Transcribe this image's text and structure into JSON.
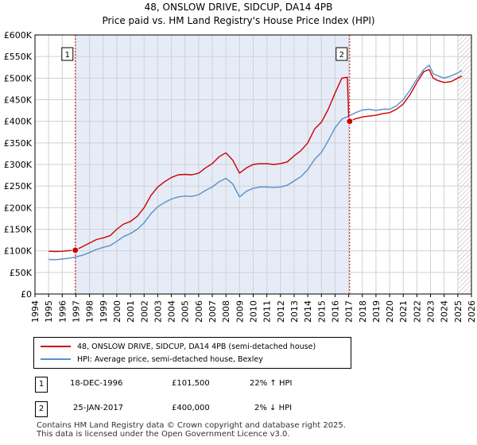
{
  "header": {
    "title": "48, ONSLOW DRIVE, SIDCUP, DA14 4PB",
    "subtitle": "Price paid vs. HM Land Registry's House Price Index (HPI)"
  },
  "colors": {
    "property": "#cc0000",
    "hpi": "#5b8ecb",
    "band": "#e6ecf7",
    "grid": "#d0d0d0"
  },
  "chart_data": {
    "type": "line",
    "title": "48, ONSLOW DRIVE, SIDCUP, DA14 4PB",
    "xlim": [
      1994,
      2026
    ],
    "ylim": [
      0,
      600000
    ],
    "x_ticks": [
      1994,
      1995,
      1996,
      1997,
      1998,
      1999,
      2000,
      2001,
      2002,
      2003,
      2004,
      2005,
      2006,
      2007,
      2008,
      2009,
      2010,
      2011,
      2012,
      2013,
      2014,
      2015,
      2016,
      2017,
      2018,
      2019,
      2020,
      2021,
      2022,
      2023,
      2024,
      2025,
      2026
    ],
    "x_tick_labels": [
      "1994",
      "1995",
      "1996",
      "1997",
      "1998",
      "1999",
      "2000",
      "2001",
      "2002",
      "2003",
      "2004",
      "2005",
      "2006",
      "2007",
      "2008",
      "2009",
      "2010",
      "2011",
      "2012",
      "2013",
      "2014",
      "2015",
      "2016",
      "2017",
      "2018",
      "2019",
      "2020",
      "2021",
      "2022",
      "2023",
      "2024",
      "2025",
      "2026"
    ],
    "y_ticks": [
      0,
      50000,
      100000,
      150000,
      200000,
      250000,
      300000,
      350000,
      400000,
      450000,
      500000,
      550000,
      600000
    ],
    "y_tick_labels": [
      "£0",
      "£50K",
      "£100K",
      "£150K",
      "£200K",
      "£250K",
      "£300K",
      "£350K",
      "£400K",
      "£450K",
      "£500K",
      "£550K",
      "£600K"
    ],
    "series": [
      {
        "name": "48, ONSLOW DRIVE, SIDCUP, DA14 4PB (semi-detached house)",
        "color": "#cc0000",
        "x": [
          1995.0,
          1995.5,
          1996.0,
          1996.5,
          1996.96,
          1997.5,
          1998.0,
          1998.5,
          1999.0,
          1999.5,
          2000.0,
          2000.5,
          2001.0,
          2001.5,
          2002.0,
          2002.5,
          2003.0,
          2003.5,
          2004.0,
          2004.5,
          2005.0,
          2005.5,
          2006.0,
          2006.5,
          2007.0,
          2007.5,
          2008.0,
          2008.5,
          2009.0,
          2009.5,
          2010.0,
          2010.5,
          2011.0,
          2011.5,
          2012.0,
          2012.5,
          2013.0,
          2013.5,
          2014.0,
          2014.5,
          2015.0,
          2015.5,
          2016.0,
          2016.5,
          2016.9,
          2017.0,
          2017.07,
          2017.5,
          2018.0,
          2018.5,
          2019.0,
          2019.5,
          2020.0,
          2020.5,
          2021.0,
          2021.5,
          2022.0,
          2022.5,
          2022.9,
          2023.2,
          2023.5,
          2024.0,
          2024.5,
          2025.0,
          2025.3
        ],
        "values": [
          99000,
          98500,
          99000,
          100500,
          101500,
          110000,
          118000,
          126000,
          130000,
          135000,
          150000,
          162000,
          168000,
          180000,
          200000,
          228000,
          248000,
          260000,
          270000,
          276000,
          277000,
          276000,
          280000,
          292000,
          302000,
          318000,
          327000,
          310000,
          280000,
          292000,
          300000,
          302000,
          302000,
          300000,
          302000,
          306000,
          320000,
          332000,
          350000,
          382000,
          398000,
          428000,
          465000,
          500000,
          502000,
          410000,
          400000,
          406000,
          410000,
          412000,
          414000,
          418000,
          420000,
          428000,
          440000,
          462000,
          490000,
          515000,
          520000,
          500000,
          495000,
          490000,
          492000,
          500000,
          505000
        ]
      },
      {
        "name": "HPI: Average price, semi-detached house, Bexley",
        "color": "#5b8ecb",
        "x": [
          1995.0,
          1995.5,
          1996.0,
          1996.5,
          1997.0,
          1997.5,
          1998.0,
          1998.5,
          1999.0,
          1999.5,
          2000.0,
          2000.5,
          2001.0,
          2001.5,
          2002.0,
          2002.5,
          2003.0,
          2003.5,
          2004.0,
          2004.5,
          2005.0,
          2005.5,
          2006.0,
          2006.5,
          2007.0,
          2007.5,
          2008.0,
          2008.5,
          2009.0,
          2009.5,
          2010.0,
          2010.5,
          2011.0,
          2011.5,
          2012.0,
          2012.5,
          2013.0,
          2013.5,
          2014.0,
          2014.5,
          2015.0,
          2015.5,
          2016.0,
          2016.5,
          2017.0,
          2017.5,
          2018.0,
          2018.5,
          2019.0,
          2019.5,
          2020.0,
          2020.5,
          2021.0,
          2021.5,
          2022.0,
          2022.5,
          2022.9,
          2023.2,
          2023.5,
          2024.0,
          2024.5,
          2025.0,
          2025.3
        ],
        "values": [
          80000,
          79500,
          81000,
          83000,
          86000,
          90000,
          96000,
          103000,
          108000,
          112000,
          122000,
          133000,
          140000,
          150000,
          165000,
          186000,
          202000,
          212000,
          220000,
          225000,
          227000,
          226000,
          230000,
          240000,
          248000,
          260000,
          268000,
          255000,
          225000,
          238000,
          245000,
          248000,
          248000,
          247000,
          248000,
          252000,
          262000,
          272000,
          288000,
          312000,
          328000,
          355000,
          385000,
          405000,
          412000,
          420000,
          426000,
          428000,
          425000,
          428000,
          428000,
          436000,
          450000,
          472000,
          498000,
          520000,
          530000,
          510000,
          506000,
          500000,
          505000,
          512000,
          518000
        ]
      }
    ],
    "annotations": [
      {
        "label": "1",
        "x": 1996.96,
        "y": 101500
      },
      {
        "label": "2",
        "x": 2017.07,
        "y": 400000
      }
    ],
    "hatch_from": 2025.0
  },
  "legend": {
    "property_label": "48, ONSLOW DRIVE, SIDCUP, DA14 4PB (semi-detached house)",
    "hpi_label": "HPI: Average price, semi-detached house, Bexley"
  },
  "transactions": [
    {
      "num": "1",
      "date": "18-DEC-1996",
      "price": "£101,500",
      "hpi": "22% ↑ HPI"
    },
    {
      "num": "2",
      "date": "25-JAN-2017",
      "price": "£400,000",
      "hpi": "2% ↓ HPI"
    }
  ],
  "footer": {
    "line1": "Contains HM Land Registry data © Crown copyright and database right 2025.",
    "line2": "This data is licensed under the Open Government Licence v3.0."
  }
}
